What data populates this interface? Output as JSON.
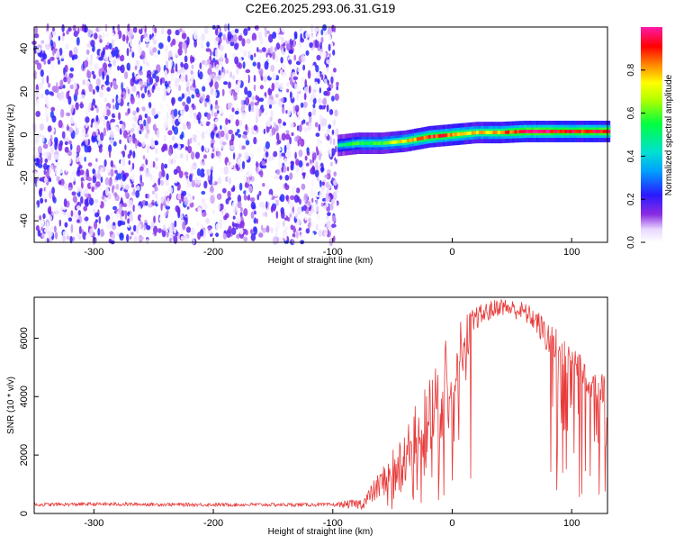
{
  "title": "C2E6.2025.293.06.31.G19",
  "colors": {
    "snr_line": "#e83a3a",
    "frame": "#000000",
    "background": "#ffffff"
  },
  "chart_data": [
    {
      "type": "heatmap",
      "title": "C2E6.2025.293.06.31.G19",
      "xlabel": "Height of straight line (km)",
      "ylabel": "Frequency (Hz)",
      "xlim": [
        -350,
        130
      ],
      "ylim": [
        -50,
        50
      ],
      "xticks": [
        -300,
        -200,
        -100,
        0,
        100
      ],
      "yticks": [
        -40,
        -20,
        0,
        20,
        40
      ],
      "colorbar": {
        "label": "Normalized spectral amplitude",
        "range": [
          0,
          1
        ],
        "ticks": [
          "0.0",
          "0.2",
          "0.4",
          "0.6",
          "0.8"
        ]
      },
      "regions": [
        {
          "name": "noise",
          "x_range": [
            -350,
            -96
          ],
          "freq_range": [
            -50,
            50
          ],
          "amplitude_range": [
            0,
            0.25
          ]
        },
        {
          "name": "tone",
          "x": [
            -96,
            -80,
            -60,
            -40,
            -20,
            0,
            20,
            40,
            60,
            80,
            100,
            130
          ],
          "freq_hz": [
            -5,
            -4,
            -4,
            -3,
            -1,
            0,
            1,
            1,
            1.5,
            1.5,
            1.5,
            1.5
          ],
          "peak_amplitude": [
            0.45,
            0.55,
            0.6,
            0.75,
            0.9,
            0.85,
            0.75,
            0.8,
            0.95,
            0.95,
            0.9,
            0.95
          ]
        }
      ]
    },
    {
      "type": "line",
      "xlabel": "Height of straight line (km)",
      "ylabel": "SNR (10 * v/v)",
      "xlim": [
        -350,
        130
      ],
      "ylim": [
        0,
        7400
      ],
      "xticks": [
        -300,
        -200,
        -100,
        0,
        100
      ],
      "yticks": [
        0,
        2000,
        4000,
        6000
      ],
      "series": [
        {
          "name": "SNR",
          "x": [
            -350,
            -300,
            -250,
            -200,
            -150,
            -100,
            -75,
            -60,
            -40,
            -25,
            -10,
            0,
            20,
            40,
            60,
            70,
            80,
            100,
            120,
            130
          ],
          "y": [
            300,
            320,
            310,
            300,
            300,
            300,
            330,
            1000,
            2000,
            2900,
            4000,
            5000,
            6700,
            7100,
            6900,
            6600,
            6000,
            5300,
            4500,
            3700
          ],
          "noise_amp": [
            60,
            60,
            60,
            60,
            60,
            60,
            200,
            500,
            900,
            1300,
            1600,
            1400,
            400,
            300,
            350,
            400,
            600,
            700,
            700,
            800
          ]
        }
      ]
    }
  ]
}
